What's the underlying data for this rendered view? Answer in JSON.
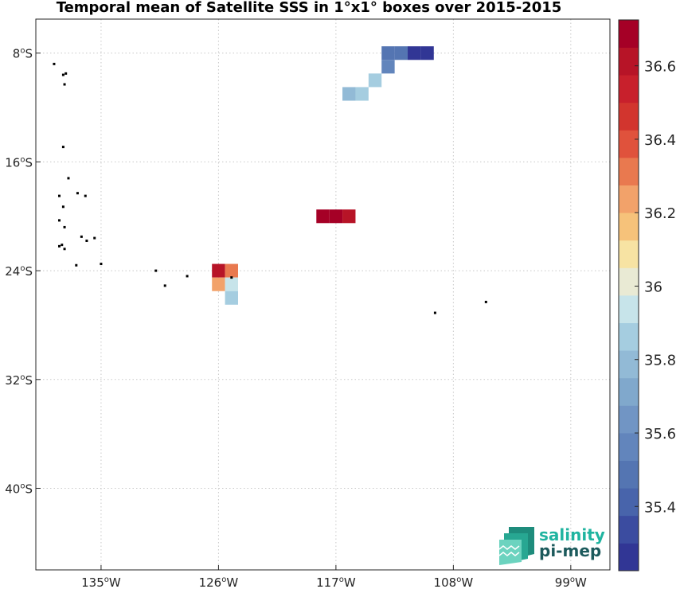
{
  "title": "Temporal mean of Satellite SSS in 1°x1° boxes over 2015-2015",
  "map": {
    "lon_range": [
      -140,
      -96
    ],
    "lat_range": [
      -46,
      -5.5
    ],
    "lon_ticks": [
      {
        "value": -135,
        "label": "135",
        "hemi": "W"
      },
      {
        "value": -126,
        "label": "126",
        "hemi": "W"
      },
      {
        "value": -117,
        "label": "117",
        "hemi": "W"
      },
      {
        "value": -108,
        "label": "108",
        "hemi": "W"
      },
      {
        "value": -99,
        "label": "99",
        "hemi": "W"
      }
    ],
    "lat_ticks": [
      {
        "value": -8,
        "label": "8",
        "hemi": "S"
      },
      {
        "value": -16,
        "label": "16",
        "hemi": "S"
      },
      {
        "value": -24,
        "label": "24",
        "hemi": "S"
      },
      {
        "value": -32,
        "label": "32",
        "hemi": "S"
      },
      {
        "value": -40,
        "label": "40",
        "hemi": "S"
      }
    ],
    "grid": true
  },
  "chart_data": {
    "type": "heatmap",
    "title": "Temporal mean of Satellite SSS in 1°x1° boxes over 2015-2015",
    "cells": [
      {
        "lon": -113,
        "lat": -8,
        "value": 35.45
      },
      {
        "lon": -112,
        "lat": -8,
        "value": 35.45
      },
      {
        "lon": -111,
        "lat": -8,
        "value": 35.3
      },
      {
        "lon": -110,
        "lat": -8,
        "value": 35.3
      },
      {
        "lon": -113,
        "lat": -9,
        "value": 35.55
      },
      {
        "lon": -114,
        "lat": -10,
        "value": 35.85
      },
      {
        "lon": -116,
        "lat": -11,
        "value": 35.8
      },
      {
        "lon": -115,
        "lat": -11,
        "value": 35.85
      },
      {
        "lon": -118,
        "lat": -20,
        "value": 36.7
      },
      {
        "lon": -117,
        "lat": -20,
        "value": 36.7
      },
      {
        "lon": -116,
        "lat": -20,
        "value": 36.65
      },
      {
        "lon": -126,
        "lat": -24,
        "value": 36.6
      },
      {
        "lon": -125,
        "lat": -24,
        "value": 36.3
      },
      {
        "lon": -126,
        "lat": -25,
        "value": 36.2
      },
      {
        "lon": -125,
        "lat": -25,
        "value": 35.95
      },
      {
        "lon": -125,
        "lat": -26,
        "value": 35.85
      }
    ],
    "colorbar": {
      "min": 35.225,
      "max": 36.725,
      "step": 0.075,
      "ticks": [
        {
          "value": 35.4,
          "label": "35.4"
        },
        {
          "value": 35.6,
          "label": "35.6"
        },
        {
          "value": 35.8,
          "label": "35.8"
        },
        {
          "value": 36.0,
          "label": "36"
        },
        {
          "value": 36.2,
          "label": "36.2"
        },
        {
          "value": 36.4,
          "label": "36.4"
        },
        {
          "value": 36.6,
          "label": "36.6"
        }
      ],
      "colors": [
        "#313695",
        "#3b4ca0",
        "#4864ab",
        "#5475b2",
        "#6285bc",
        "#7195c4",
        "#80a8cc",
        "#92bad6",
        "#a5cde0",
        "#c7e4ea",
        "#e9ead4",
        "#f7e3a3",
        "#f6c27a",
        "#f2a26a",
        "#e9794f",
        "#e0523c",
        "#d2352e",
        "#c8202c",
        "#b71427",
        "#a50026"
      ]
    },
    "islands": [
      {
        "lon": -138.6,
        "lat": -8.8
      },
      {
        "lon": -137.9,
        "lat": -9.6
      },
      {
        "lon": -137.7,
        "lat": -9.5
      },
      {
        "lon": -137.8,
        "lat": -10.3
      },
      {
        "lon": -137.9,
        "lat": -14.9
      },
      {
        "lon": -137.5,
        "lat": -17.2
      },
      {
        "lon": -138.2,
        "lat": -18.5
      },
      {
        "lon": -136.8,
        "lat": -18.3
      },
      {
        "lon": -136.2,
        "lat": -18.5
      },
      {
        "lon": -137.9,
        "lat": -19.3
      },
      {
        "lon": -138.2,
        "lat": -20.3
      },
      {
        "lon": -137.8,
        "lat": -20.8
      },
      {
        "lon": -136.5,
        "lat": -21.5
      },
      {
        "lon": -136.1,
        "lat": -21.8
      },
      {
        "lon": -135.5,
        "lat": -21.6
      },
      {
        "lon": -138.0,
        "lat": -22.1
      },
      {
        "lon": -138.2,
        "lat": -22.2
      },
      {
        "lon": -137.8,
        "lat": -22.4
      },
      {
        "lon": -136.9,
        "lat": -23.6
      },
      {
        "lon": -135.0,
        "lat": -23.5
      },
      {
        "lon": -130.8,
        "lat": -24.0
      },
      {
        "lon": -128.4,
        "lat": -24.4
      },
      {
        "lon": -130.1,
        "lat": -25.1
      },
      {
        "lon": -125.0,
        "lat": -24.5
      },
      {
        "lon": -109.4,
        "lat": -27.1
      },
      {
        "lon": -105.5,
        "lat": -26.3
      }
    ]
  },
  "logo": {
    "line1": "salinity",
    "line2": "pi-mep",
    "color_line1": "#20b4a0",
    "color_line2": "#1c5a5c"
  }
}
